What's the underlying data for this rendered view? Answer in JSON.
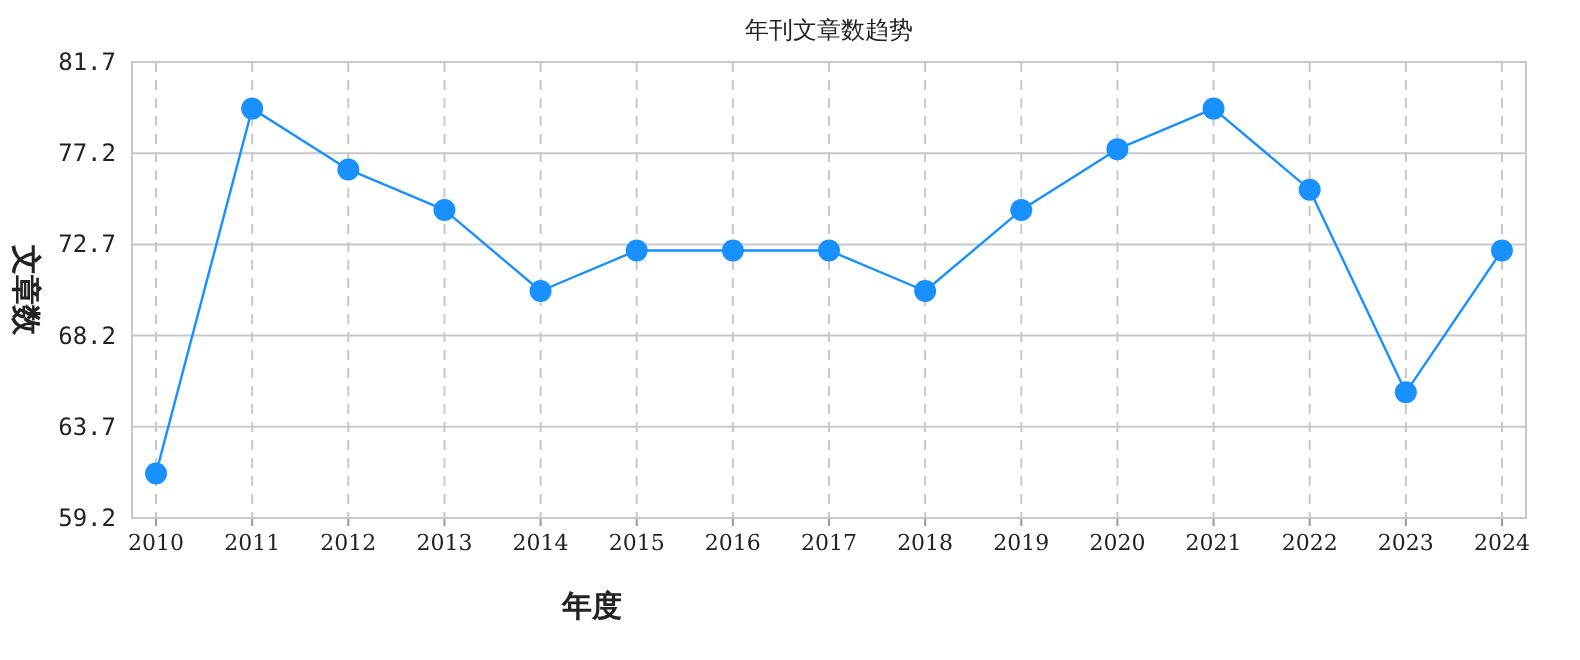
{
  "chart_data": {
    "type": "line",
    "title": "年刊文章数趋势",
    "xlabel": "年度",
    "ylabel": "文章数",
    "categories": [
      "2010",
      "2011",
      "2012",
      "2013",
      "2014",
      "2015",
      "2016",
      "2017",
      "2018",
      "2019",
      "2020",
      "2021",
      "2022",
      "2023",
      "2024"
    ],
    "series": [
      {
        "color": "#1890ff",
        "values": [
          61.4,
          79.4,
          76.4,
          74.4,
          70.4,
          72.4,
          72.4,
          72.4,
          70.4,
          74.4,
          77.4,
          79.4,
          75.4,
          65.4,
          72.4
        ]
      }
    ],
    "ylim": [
      59.2,
      81.7
    ],
    "yticks": [
      59.2,
      63.7,
      68.2,
      72.7,
      77.2,
      81.7
    ],
    "grid": true,
    "marker": "circle",
    "line_style": "solid"
  }
}
